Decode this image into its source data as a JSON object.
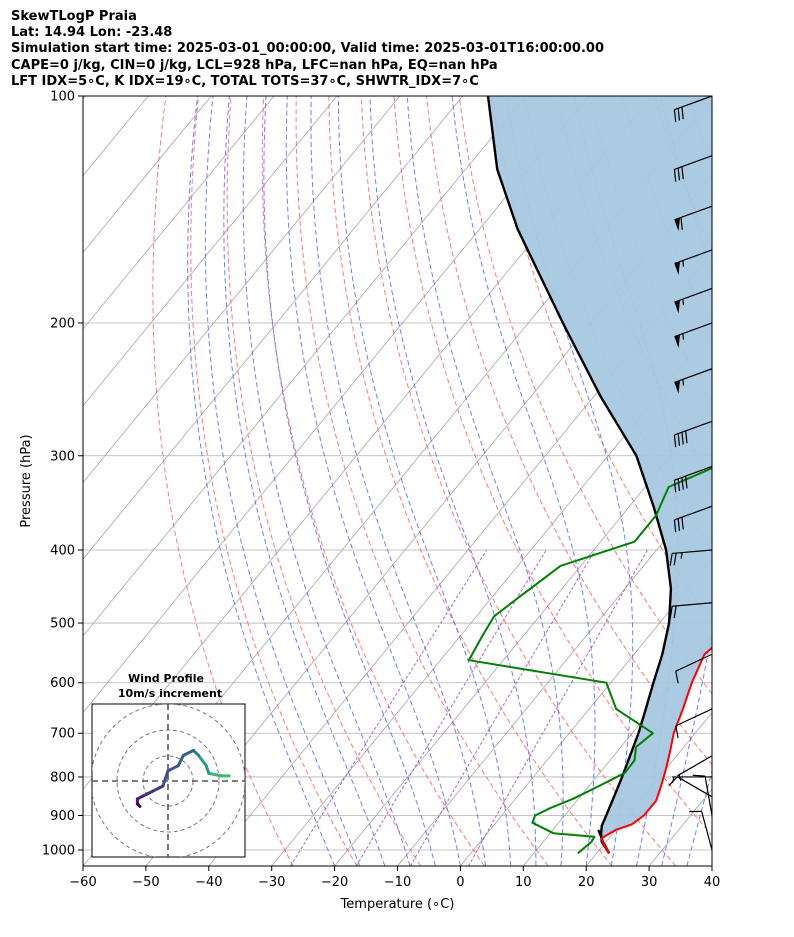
{
  "header": {
    "line1": "SkewTLogP Praia",
    "line2": "Lat: 14.94   Lon: -23.48",
    "line3": "Simulation start time: 2025-03-01_00:00:00, Valid time: 2025-03-01T16:00:00.00",
    "line4": "CAPE=0 j/kg, CIN=0 j/kg, LCL=928 hPa, LFC=nan hPa, EQ=nan hPa",
    "line5": "LFT IDX=5∘C, K IDX=19∘C, TOTAL TOTS=37∘C, SHWTR_IDX=7∘C"
  },
  "chart_data": {
    "type": "line",
    "xlabel": "Temperature (∘C)",
    "ylabel": "Pressure (hPa)",
    "xlim": [
      -60,
      40
    ],
    "ylim": [
      1050,
      100
    ],
    "y_scale": "log",
    "grid": true,
    "x_ticks": [
      -60,
      -50,
      -40,
      -30,
      -20,
      -10,
      0,
      10,
      20,
      30,
      40
    ],
    "y_ticks": [
      100,
      200,
      300,
      400,
      500,
      600,
      700,
      800,
      900,
      1000
    ],
    "colors": {
      "temperature": "#ff0000",
      "dewpoint": "#008000",
      "parcel": "#000000",
      "cape_fill": "#a6c8e0",
      "dry_adiabats": "#ff6060",
      "moist_adiabats": "#4d6bff",
      "mixing_ratio": "#9a4fc8",
      "isotherms": "#a6a6a6"
    },
    "series": [
      {
        "key": "temperature",
        "pressure": [
          1010,
          990,
          965,
          940,
          925,
          900,
          860,
          820,
          780,
          740,
          700,
          650,
          600,
          550,
          500,
          450,
          420,
          390,
          360,
          330,
          300,
          270,
          240,
          220,
          200,
          185,
          170,
          155,
          150,
          140,
          130,
          120,
          110,
          100
        ],
        "values": [
          22,
          20.5,
          18.8,
          20,
          21.8,
          22.6,
          22.6,
          21.4,
          20,
          18.4,
          16.6,
          14.9,
          12.9,
          11.2,
          13,
          13.1,
          11.6,
          8.8,
          6.1,
          5.6,
          4.6,
          3.8,
          2.5,
          -1.1,
          -3,
          -5.4,
          -7.5,
          -10.5,
          -10.3,
          -7.7,
          -5.2,
          -3.9,
          -2.6,
          -2.3
        ]
      },
      {
        "key": "dewpoint",
        "pressure": [
          1010,
          975,
          960,
          950,
          920,
          900,
          880,
          855,
          820,
          790,
          760,
          730,
          700,
          650,
          600,
          560,
          520,
          490,
          460,
          420,
          390,
          360,
          330,
          310,
          290,
          270,
          255,
          240,
          225,
          200,
          185,
          170,
          160,
          145,
          135,
          125,
          113,
          100
        ],
        "values": [
          17,
          17.7,
          17.5,
          10.5,
          5.8,
          5.3,
          6.7,
          9.2,
          11.8,
          14,
          13.9,
          12.4,
          13.3,
          4.3,
          -0.7,
          -25.5,
          -26.5,
          -27.2,
          -25.6,
          -23.2,
          -14.6,
          -14.6,
          -16.3,
          -11.5,
          -3.7,
          -1.9,
          -0.6,
          0.8,
          -0.3,
          -1.2,
          -3.1,
          -5.7,
          -7.2,
          -9,
          -8.8,
          -8.8,
          -7.5,
          -3.8
        ]
      },
      {
        "key": "parcel",
        "pressure": [
          1010,
          975,
          950,
          928,
          900,
          850,
          800,
          750,
          700,
          650,
          600,
          550,
          500,
          450,
          400,
          350,
          300,
          250,
          200,
          150,
          125,
          100
        ],
        "values": [
          22,
          19.3,
          18.1,
          17.2,
          16.6,
          15.4,
          14.1,
          12.6,
          11,
          9,
          6.8,
          4.5,
          1.5,
          -2.7,
          -8.5,
          -16.2,
          -25.5,
          -39,
          -54.5,
          -74,
          -85,
          -96
        ]
      }
    ],
    "parcel_branch": {
      "pressure": [
        1010,
        975,
        940
      ],
      "values": [
        22,
        19.5,
        17.2
      ]
    },
    "wind_barbs": {
      "pressure": [
        100,
        120,
        140,
        160,
        180,
        200,
        230,
        270,
        310,
        350,
        400,
        470,
        550,
        650,
        750,
        800,
        850,
        900,
        1000
      ],
      "speed_kt": [
        30,
        30,
        60,
        55,
        55,
        55,
        55,
        40,
        40,
        30,
        25,
        20,
        10,
        10,
        5,
        5,
        10,
        10,
        10
      ],
      "dir_deg": [
        110,
        110,
        110,
        110,
        110,
        110,
        110,
        110,
        110,
        110,
        95,
        95,
        115,
        115,
        120,
        90,
        60,
        10,
        15
      ]
    },
    "inset": {
      "title": "Wind Profile",
      "subtitle": "10m/s increment",
      "u_ms": [
        12,
        10.5,
        8,
        7.5,
        6,
        5,
        3,
        2,
        0,
        -1,
        -3,
        -4,
        -5,
        -6,
        -6,
        -5.5
      ],
      "v_ms": [
        1,
        1,
        1.5,
        3,
        5,
        6,
        5,
        3,
        2,
        -1,
        -2,
        -2.5,
        -3,
        -3.5,
        -4.5,
        -5
      ]
    }
  }
}
